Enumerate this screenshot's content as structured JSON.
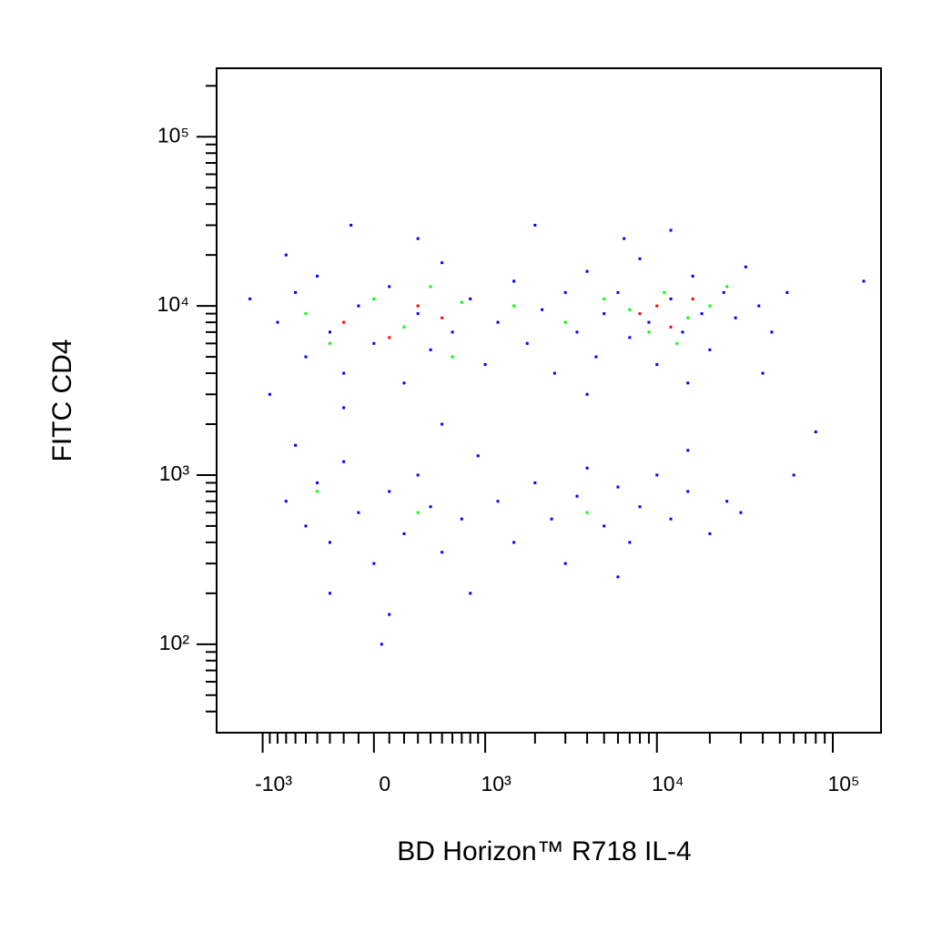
{
  "chart_data": {
    "type": "scatter",
    "x_label": "BD Horizon™ R718 IL-4",
    "y_label": "FITC CD4",
    "xscale": "arcsinh",
    "yscale": "log",
    "xlim": [
      -1900,
      188000
    ],
    "ylim": [
      30,
      254000
    ],
    "xticks": [
      {
        "value": -1000,
        "label": "-10³"
      },
      {
        "value": 0,
        "label": "0"
      },
      {
        "value": 1000,
        "label": "10³"
      },
      {
        "value": 10000,
        "label": "10⁴"
      },
      {
        "value": 100000,
        "label": "10⁵"
      }
    ],
    "xminorticks": [
      -900,
      -800,
      -700,
      -600,
      -500,
      -400,
      -300,
      -200,
      -100,
      100,
      200,
      300,
      400,
      500,
      600,
      700,
      800,
      900,
      2000,
      3000,
      4000,
      5000,
      6000,
      7000,
      8000,
      9000,
      20000,
      30000,
      40000,
      50000,
      60000,
      70000,
      80000,
      90000
    ],
    "yticks": [
      {
        "value": 100,
        "label": "10²"
      },
      {
        "value": 1000,
        "label": "10³"
      },
      {
        "value": 10000,
        "label": "10⁴"
      },
      {
        "value": 100000,
        "label": "10⁵"
      }
    ],
    "yminorticks": [
      40,
      50,
      60,
      70,
      80,
      90,
      200,
      300,
      400,
      500,
      600,
      700,
      800,
      900,
      2000,
      3000,
      4000,
      5000,
      6000,
      7000,
      8000,
      9000,
      20000,
      30000,
      40000,
      50000,
      60000,
      70000,
      80000,
      90000,
      200000
    ],
    "series": [
      {
        "color": "#0000ff",
        "x": [
          -800,
          -600,
          -500,
          -400,
          -300,
          -200,
          -100,
          0,
          100,
          200,
          300,
          400,
          500,
          600,
          800,
          1000,
          1200,
          1500,
          1800,
          2200,
          2600,
          3000,
          3500,
          4000,
          4500,
          5000,
          6000,
          7000,
          8000,
          9000,
          10000,
          12000,
          14000,
          16000,
          18000,
          20000,
          24000,
          28000,
          32000,
          38000,
          45000,
          55000,
          -900,
          -700,
          300,
          2000,
          12000,
          -200,
          500,
          4000,
          15000,
          40000,
          -150,
          6500,
          -700,
          -500,
          -400,
          -300,
          -200,
          -100,
          0,
          100,
          200,
          300,
          400,
          500,
          700,
          900,
          1200,
          1500,
          2000,
          2500,
          3000,
          3500,
          4000,
          5000,
          6000,
          7000,
          8000,
          10000,
          12000,
          15000,
          20000,
          25000,
          30000,
          -300,
          100,
          800,
          6000,
          50,
          -600,
          15000,
          80000,
          60000,
          150000,
          -1200
        ],
        "values": [
          8000,
          12000,
          5000,
          15000,
          7000,
          4000,
          10000,
          6000,
          13000,
          3500,
          9000,
          5500,
          18000,
          7000,
          11000,
          4500,
          8000,
          14000,
          6000,
          9500,
          4000,
          12000,
          7000,
          16000,
          5000,
          9000,
          12000,
          6500,
          19000,
          8000,
          4500,
          11000,
          7000,
          15000,
          9000,
          5500,
          12000,
          8500,
          17000,
          10000,
          7000,
          12000,
          3000,
          20000,
          25000,
          30000,
          28000,
          2500,
          2000,
          3000,
          3500,
          4000,
          30000,
          25000,
          700,
          500,
          900,
          400,
          1200,
          600,
          300,
          800,
          450,
          1000,
          650,
          350,
          550,
          1300,
          700,
          400,
          900,
          550,
          300,
          750,
          1100,
          500,
          850,
          400,
          650,
          1000,
          550,
          800,
          450,
          700,
          600,
          200,
          150,
          200,
          250,
          100,
          1500,
          1400,
          1800,
          1000,
          14000,
          11000
        ]
      },
      {
        "color": "#00ff00",
        "x": [
          -500,
          -300,
          0,
          200,
          400,
          600,
          1500,
          3000,
          5000,
          7000,
          9000,
          11000,
          15000,
          20000,
          25000,
          -400,
          300,
          4000,
          700,
          13000
        ],
        "values": [
          9000,
          6000,
          11000,
          7500,
          13000,
          5000,
          10000,
          8000,
          11000,
          9500,
          7000,
          12000,
          8500,
          10000,
          13000,
          800,
          600,
          600,
          10500,
          6000
        ]
      },
      {
        "color": "#ff0000",
        "x": [
          -200,
          100,
          300,
          8000,
          12000,
          16000,
          10000,
          500
        ],
        "values": [
          8000,
          6500,
          10000,
          9000,
          7500,
          11000,
          10000,
          8500
        ]
      }
    ]
  }
}
